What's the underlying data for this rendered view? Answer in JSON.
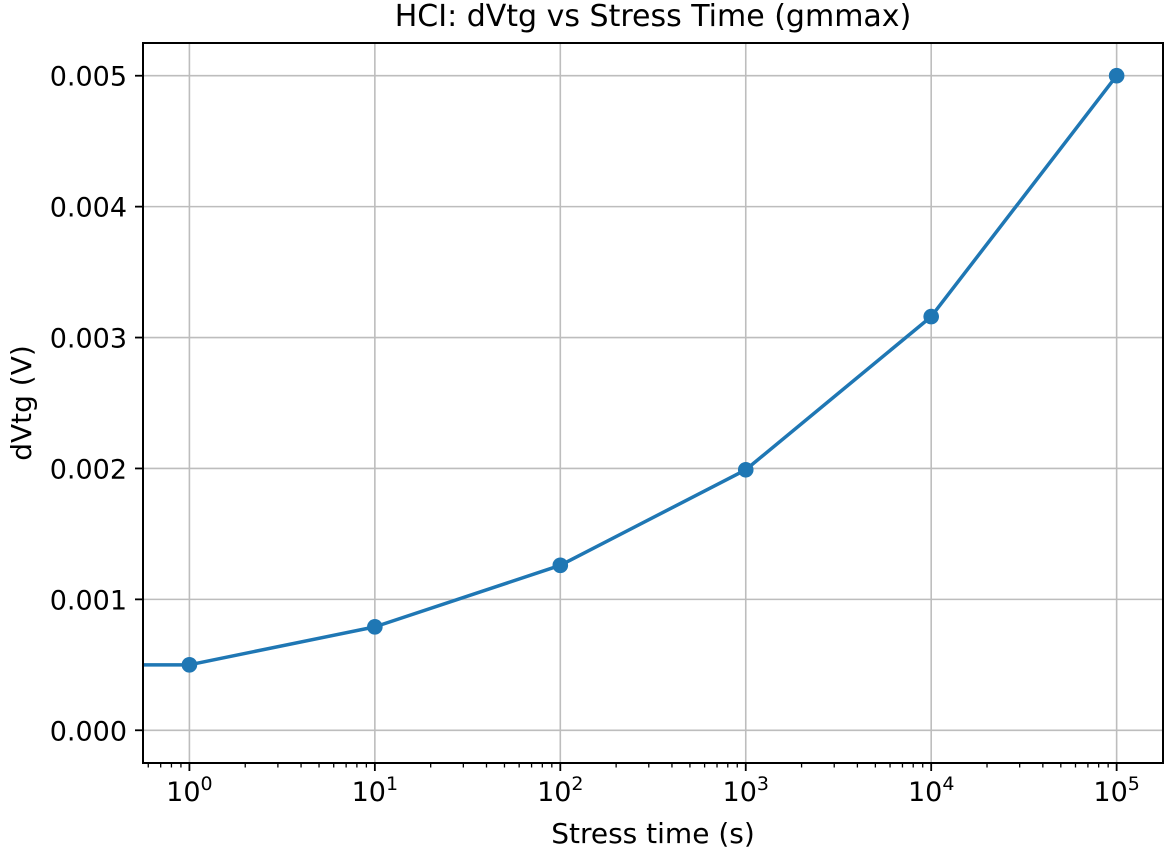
{
  "figure": {
    "background_color": "#ffffff",
    "text_color": "#000000"
  },
  "chart_data": {
    "type": "line",
    "title": "HCI: dVtg vs Stress Time (gmmax)",
    "xlabel": "Stress time (s)",
    "ylabel": "dVtg (V)",
    "x_scale": "log",
    "y_scale": "linear",
    "x": [
      1,
      10,
      100,
      1000,
      10000,
      100000
    ],
    "y": [
      0.0005,
      0.00079,
      0.00126,
      0.00199,
      0.00316,
      0.005
    ],
    "line_enters_from_left_edge": true,
    "line_color": "#1f77b4",
    "marker": "circle",
    "marker_color": "#1f77b4",
    "grid": true,
    "grid_color": "#bdbdbd",
    "spine_color": "#000000",
    "legend": "none",
    "xlim": [
      0.562,
      177828
    ],
    "ylim": [
      -0.00025,
      0.00525
    ],
    "xtick_values": [
      1,
      10,
      100,
      1000,
      10000,
      100000
    ],
    "xtick_labels": [
      "10⁰",
      "10¹",
      "10²",
      "10³",
      "10⁴",
      "10⁵"
    ],
    "ytick_values": [
      0,
      0.001,
      0.002,
      0.003,
      0.004,
      0.005
    ],
    "ytick_labels": [
      "0.000",
      "0.001",
      "0.002",
      "0.003",
      "0.004",
      "0.005"
    ]
  }
}
